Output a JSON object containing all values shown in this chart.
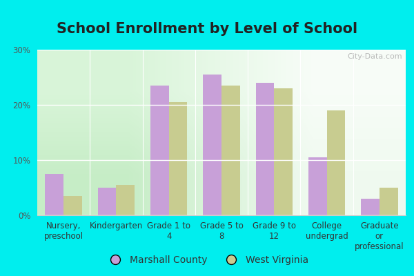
{
  "title": "School Enrollment by Level of School",
  "categories": [
    "Nursery,\npreschool",
    "Kindergarten",
    "Grade 1 to\n4",
    "Grade 5 to\n8",
    "Grade 9 to\n12",
    "College\nundergrad",
    "Graduate\nor\nprofessional"
  ],
  "marshall_county": [
    7.5,
    5.0,
    23.5,
    25.5,
    24.0,
    10.5,
    3.0
  ],
  "west_virginia": [
    3.5,
    5.5,
    20.5,
    23.5,
    23.0,
    19.0,
    5.0
  ],
  "bar_color_marshall": "#c8a0d8",
  "bar_color_wv": "#c8cc90",
  "ylim": [
    0,
    30
  ],
  "yticks": [
    0,
    10,
    20,
    30
  ],
  "ytick_labels": [
    "0%",
    "10%",
    "20%",
    "30%"
  ],
  "legend_marshall": "Marshall County",
  "legend_wv": "West Virginia",
  "bg_color_outer": "#00eeee",
  "title_color": "#222222",
  "title_fontsize": 15,
  "tick_fontsize": 8.5,
  "legend_fontsize": 10,
  "watermark_text": "City-Data.com",
  "watermark_color": "#aaaaaa"
}
